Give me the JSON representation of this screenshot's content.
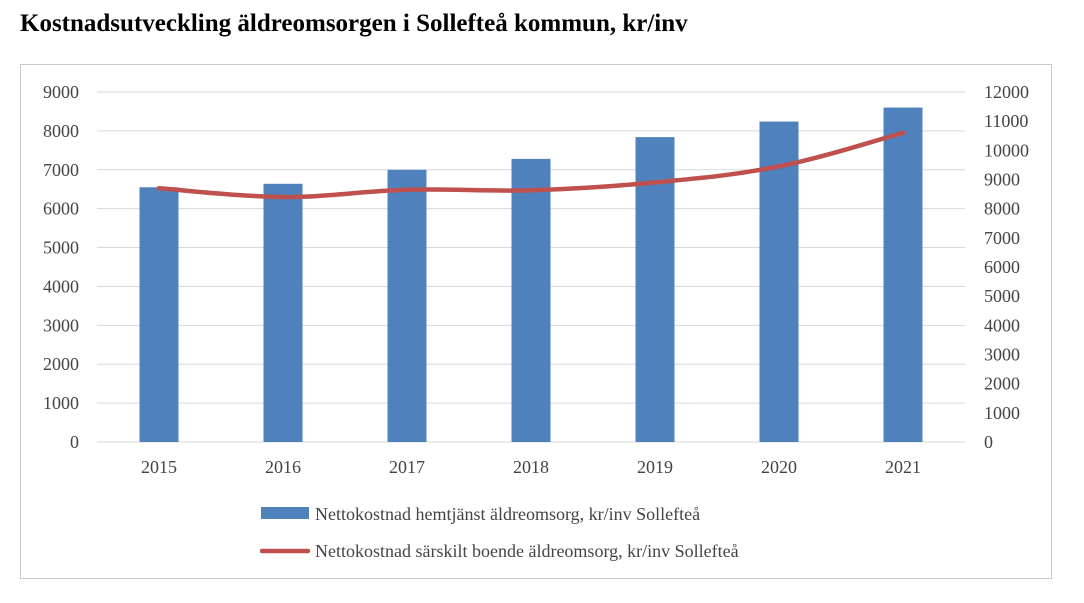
{
  "title": "Kostnadsutveckling äldreomsorgen i Sollefteå kommun, kr/inv",
  "chart_data": {
    "type": "bar",
    "categories": [
      "2015",
      "2016",
      "2017",
      "2018",
      "2019",
      "2020",
      "2021"
    ],
    "series": [
      {
        "name": "Nettokostnad hemtjänst äldreomsorg, kr/inv Sollefteå",
        "type": "bar",
        "axis": "left",
        "color": "#4f81bd",
        "values": [
          6550,
          6640,
          7000,
          7280,
          7840,
          8240,
          8600
        ]
      },
      {
        "name": "Nettokostnad särskilt boende äldreomsorg, kr/inv Sollefteå",
        "type": "line",
        "axis": "right",
        "color": "#c0504d",
        "values": [
          8700,
          8400,
          8650,
          8630,
          8900,
          9450,
          10600
        ]
      }
    ],
    "y_left": {
      "min": 0,
      "max": 9000,
      "step": 1000,
      "ticks": [
        "0",
        "1000",
        "2000",
        "3000",
        "4000",
        "5000",
        "6000",
        "7000",
        "8000",
        "9000"
      ]
    },
    "y_right": {
      "min": 0,
      "max": 12000,
      "step": 1000,
      "ticks": [
        "0",
        "1000",
        "2000",
        "3000",
        "4000",
        "5000",
        "6000",
        "7000",
        "8000",
        "9000",
        "10000",
        "11000",
        "12000"
      ]
    },
    "grid": true,
    "legend_position": "bottom"
  }
}
